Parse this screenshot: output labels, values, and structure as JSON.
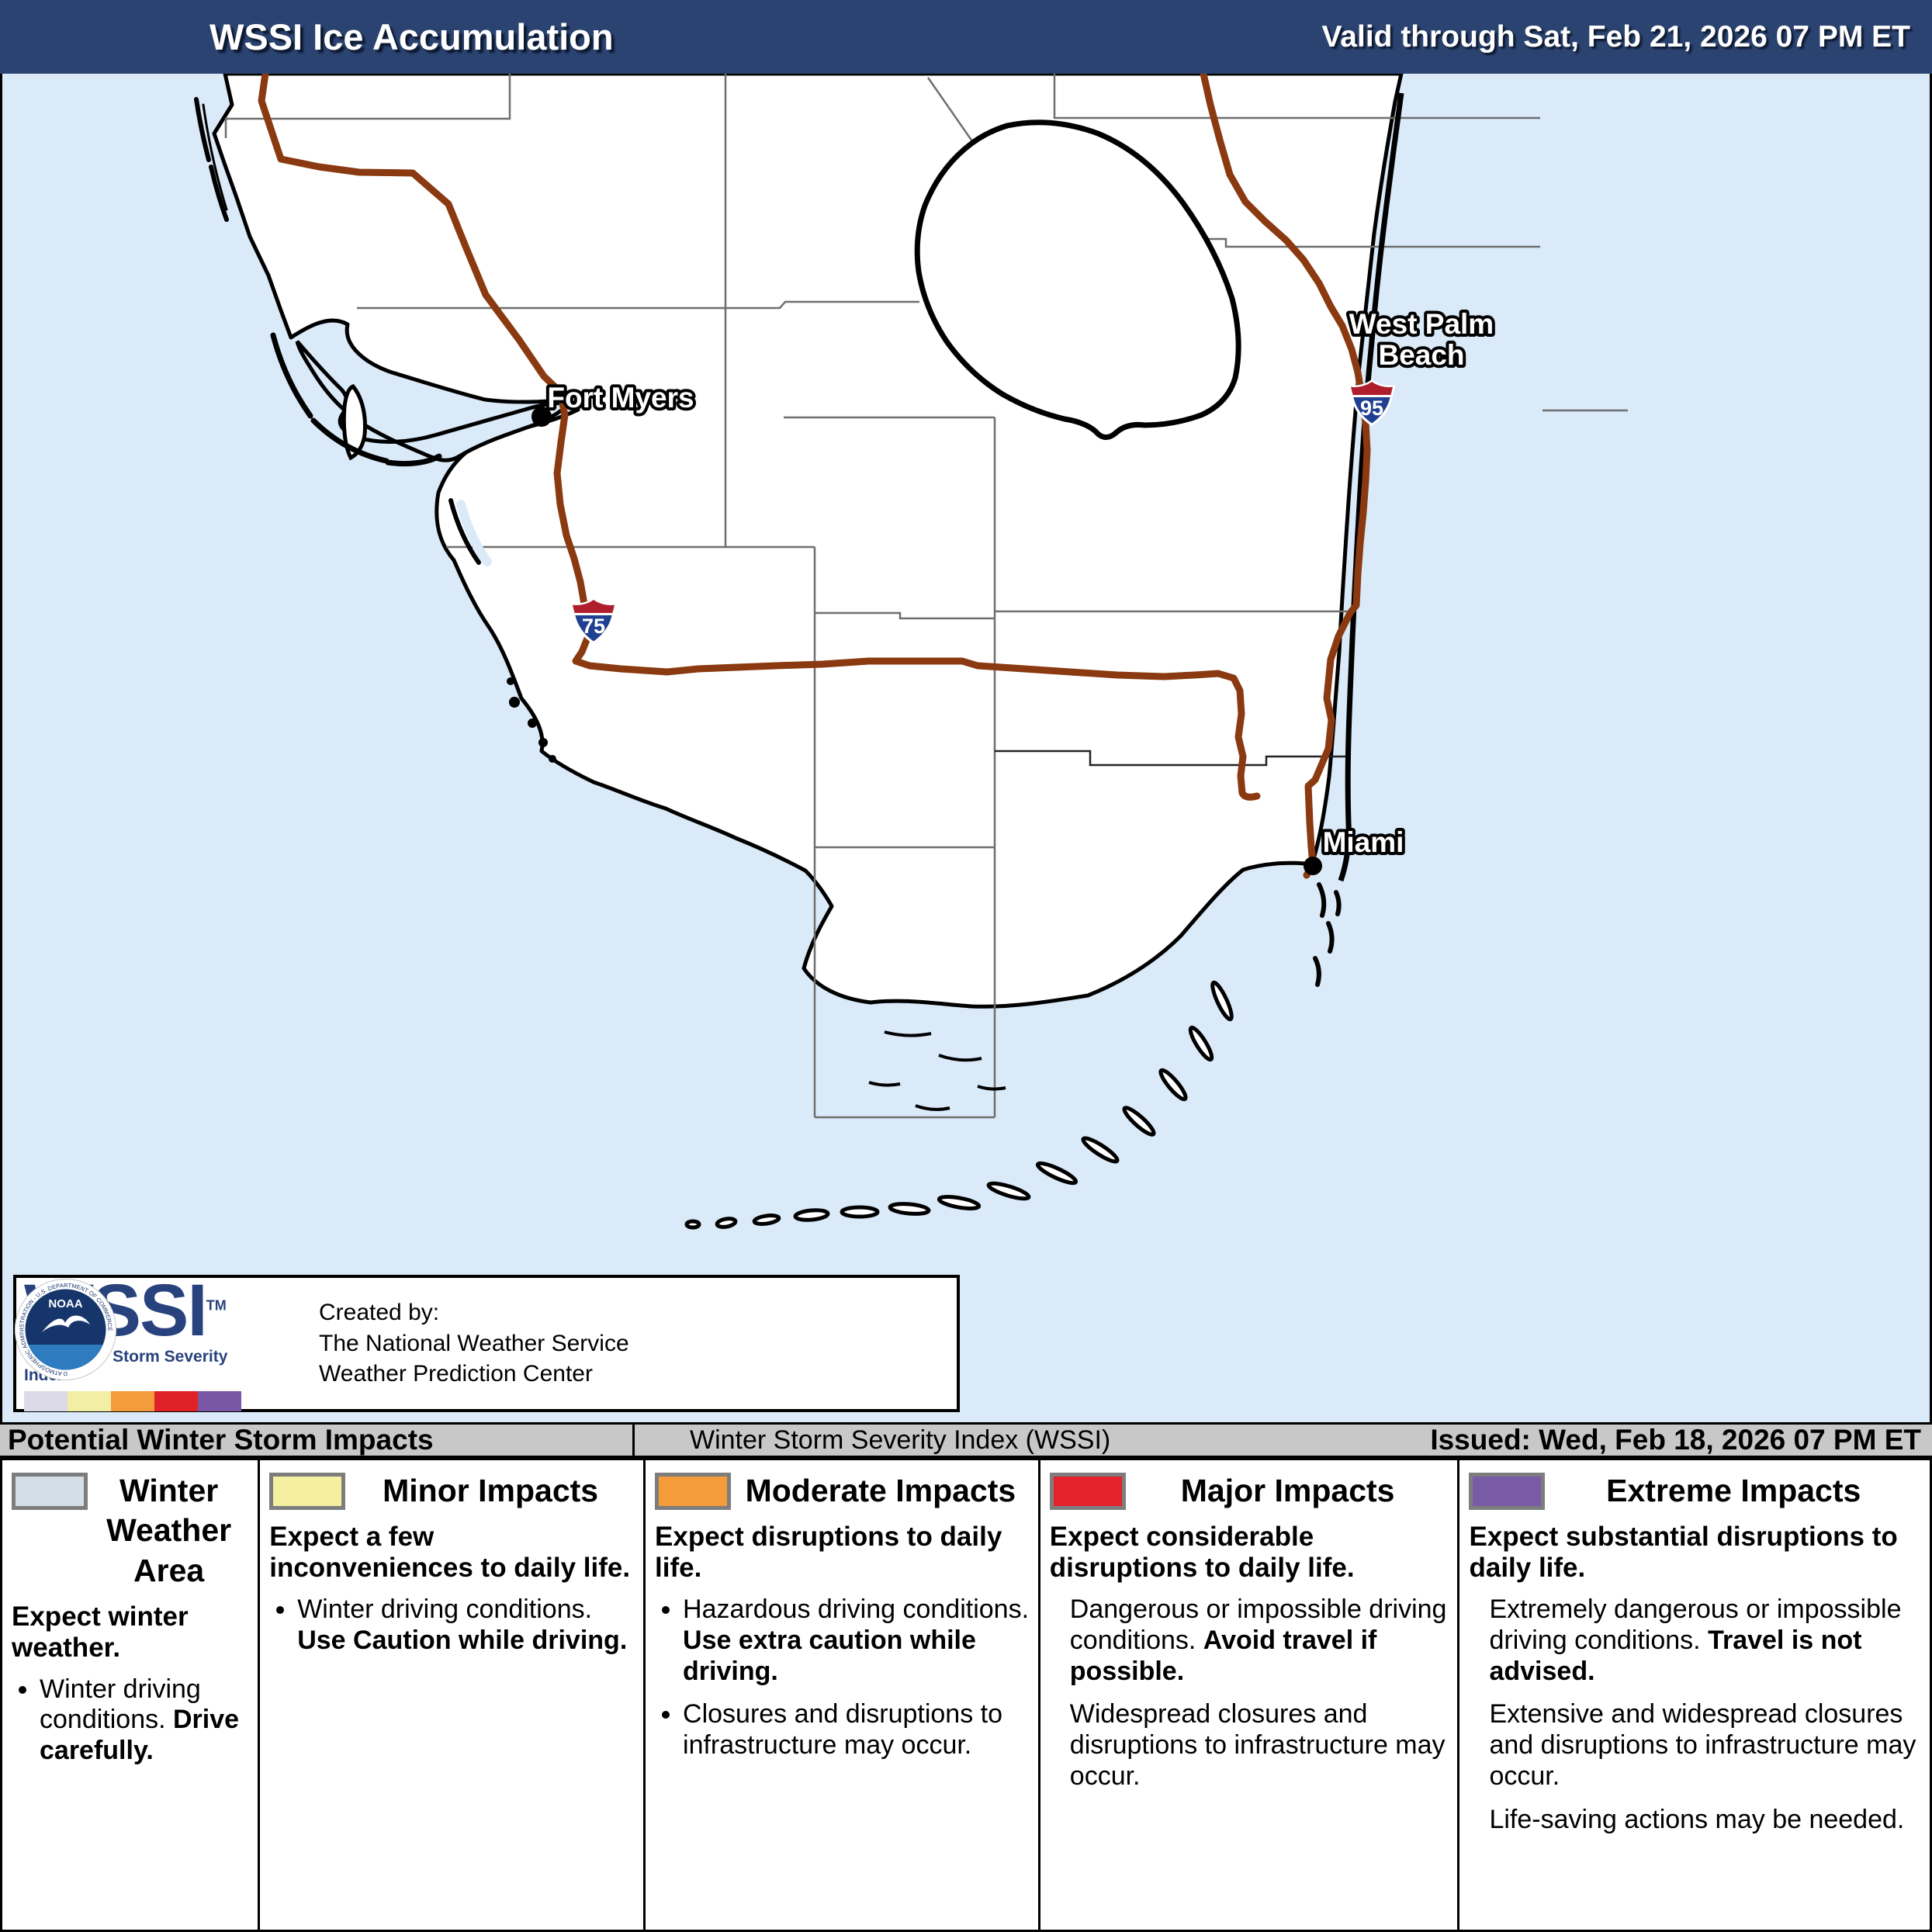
{
  "header": {
    "title": "WSSI Ice Accumulation",
    "valid": "Valid through Sat, Feb 21, 2026 07 PM ET"
  },
  "map": {
    "cities": {
      "fort_myers": "Fort Myers",
      "west_palm_line1": "West Palm",
      "west_palm_line2": "Beach",
      "miami": "Miami"
    },
    "shields": {
      "i75": "75",
      "i95": "95"
    },
    "colors": {
      "water": "#DAEAF8",
      "land": "#FFFFFF",
      "road": "#8A3910",
      "county_line": "#6F6F6F",
      "shield_red": "#B01E2E",
      "shield_blue": "#1F3F90"
    }
  },
  "logo_box": {
    "wssi": "WSSI",
    "tm": "TM",
    "tagline": "The Winter Storm Severity Index",
    "strip_colors": [
      "#DCD9E8",
      "#F2EFA4",
      "#F49C3B",
      "#E02127",
      "#7A57A5"
    ],
    "nws_ring_text": "NATIONAL WEATHER SERVICE",
    "noaa_label": "NOAA",
    "noaa_ring_text": "NATIONAL OCEANIC AND ATMOSPHERIC ADMINISTRATION - U.S. DEPARTMENT OF COMMERCE",
    "created_by": [
      "Created by:",
      "The National Weather Service",
      "Weather Prediction Center"
    ]
  },
  "impact_bar": {
    "left": "Potential Winter Storm Impacts",
    "center": "Winter Storm Severity Index (WSSI)",
    "right": "Issued: Wed, Feb 18, 2026 07 PM ET"
  },
  "legend": {
    "columns": [
      {
        "id": "winter-weather-area",
        "swatch": "#D3DEE7",
        "title": "Winter Weather Area",
        "lead": "Expect winter weather.",
        "dots": true,
        "items": [
          [
            {
              "t": "Winter driving conditions. ",
              "b": false
            },
            {
              "t": "Drive carefully.",
              "b": true
            }
          ]
        ]
      },
      {
        "id": "minor-impacts",
        "swatch": "#F4F0A0",
        "title": "Minor Impacts",
        "lead": "Expect a few inconveniences to daily life.",
        "dots": true,
        "items": [
          [
            {
              "t": "Winter driving conditions. ",
              "b": false
            },
            {
              "t": "Use Caution while driving.",
              "b": true
            }
          ]
        ]
      },
      {
        "id": "moderate-impacts",
        "swatch": "#F49C39",
        "title": "Moderate Impacts",
        "lead": "Expect disruptions to daily life.",
        "dots": true,
        "items": [
          [
            {
              "t": "Hazardous driving conditions. ",
              "b": false
            },
            {
              "t": "Use extra caution while driving.",
              "b": true
            }
          ],
          [
            {
              "t": "Closures and disruptions to infrastructure may occur.",
              "b": false
            }
          ]
        ]
      },
      {
        "id": "major-impacts",
        "swatch": "#E3222B",
        "title": "Major Impacts",
        "lead": "Expect considerable disruptions to daily life.",
        "dots": false,
        "items": [
          [
            {
              "t": "Dangerous or impossible driving conditions. ",
              "b": false
            },
            {
              "t": "Avoid travel if possible.",
              "b": true
            }
          ],
          [
            {
              "t": "Widespread closures and disruptions to infrastructure may occur.",
              "b": false
            }
          ]
        ]
      },
      {
        "id": "extreme-impacts",
        "swatch": "#7A5BA6",
        "title": "Extreme Impacts",
        "lead": "Expect substantial disruptions to daily life.",
        "dots": false,
        "items": [
          [
            {
              "t": "Extremely dangerous or impossible driving conditions. ",
              "b": false
            },
            {
              "t": "Travel is not advised.",
              "b": true
            }
          ],
          [
            {
              "t": "Extensive and widespread closures and disruptions to infrastructure may occur.",
              "b": false
            }
          ],
          [
            {
              "t": "Life-saving actions may be needed.",
              "b": false
            }
          ]
        ]
      }
    ]
  }
}
